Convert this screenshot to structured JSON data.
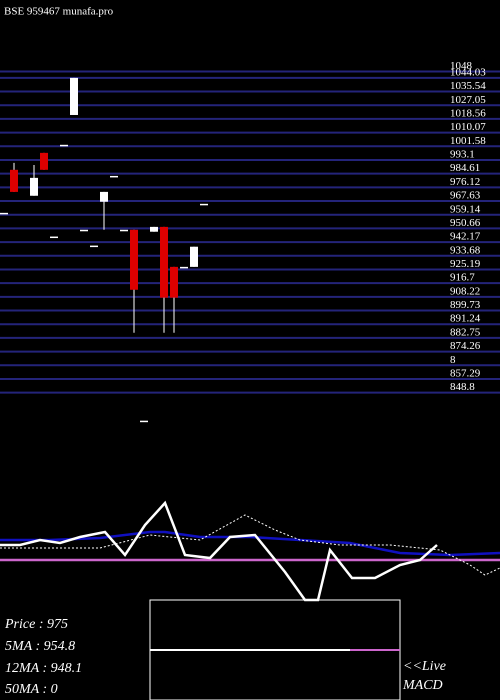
{
  "chart_data": {
    "type": "candlestick",
    "title": "BSE 959467 munafa.pro",
    "ylim": [
      818.8,
      1052
    ],
    "yticks": [
      1048,
      1044.03,
      1035.54,
      1027.05,
      1018.56,
      1010.07,
      1001.58,
      993.1,
      984.61,
      976.12,
      967.63,
      959.14,
      950.66,
      942.17,
      933.68,
      925.19,
      916.7,
      908.22,
      899.73,
      891.24,
      882.75,
      874.26,
      {
        "value": 865.77,
        "label": "8"
      },
      857.29,
      848.8
    ],
    "grid_color": "#24247a",
    "up_color": "#ffffff",
    "down_color": "#dd0000",
    "candles": [
      {
        "open": 960.3,
        "high": 960.3,
        "low": 960.3,
        "close": 960.3
      },
      {
        "open": 987,
        "high": 991.3,
        "low": 973.3,
        "close": 973.3
      },
      null,
      {
        "open": 970.9,
        "high": 990,
        "low": 970.9,
        "close": 982
      },
      {
        "open": 997.5,
        "high": 997.5,
        "low": 987,
        "close": 987
      },
      {
        "open": 945.6,
        "high": 945.6,
        "low": 945.6,
        "close": 945.6
      },
      {
        "open": 1002.5,
        "high": 1002.5,
        "low": 1002.5,
        "close": 1002.5
      },
      {
        "open": 1021,
        "high": 1044,
        "low": 1021,
        "close": 1044
      },
      {
        "open": 949.8,
        "high": 949.8,
        "low": 949.8,
        "close": 949.8
      },
      {
        "open": 940,
        "high": 940,
        "low": 940,
        "close": 940
      },
      {
        "open": 967.2,
        "high": 973.3,
        "low": 949.8,
        "close": 973.3
      },
      {
        "open": 983.2,
        "high": 983.2,
        "low": 983.2,
        "close": 983.2
      },
      {
        "open": 949.8,
        "high": 949.8,
        "low": 949.8,
        "close": 949.8
      },
      {
        "open": 949.8,
        "high": 949.8,
        "low": 885.9,
        "close": 912.6
      },
      {
        "open": 831.4,
        "high": 831.4,
        "low": 831.4,
        "close": 831.4
      },
      {
        "open": 948.6,
        "high": 951.6,
        "low": 948.6,
        "close": 951.6
      },
      {
        "open": 951.6,
        "high": 951.6,
        "low": 885.9,
        "close": 907.7
      },
      {
        "open": 926.8,
        "high": 926.8,
        "low": 885.9,
        "close": 907.7
      },
      {
        "open": 926.8,
        "high": 926.8,
        "low": 926.8,
        "close": 926.8
      },
      {
        "open": 926.8,
        "high": 939.3,
        "low": 926.8,
        "close": 939.3
      },
      {
        "open": 965.9,
        "high": 965.9,
        "low": 965.9,
        "close": 965.9
      }
    ],
    "indicator": {
      "xlim": [
        0,
        500
      ],
      "ylim": [
        0,
        100
      ],
      "series": [
        {
          "color": "#1010c0",
          "width": 2.5,
          "x": [
            0,
            50,
            100,
            150,
            165,
            200,
            250,
            300,
            350,
            375,
            400,
            450,
            500
          ],
          "values": [
            60,
            60,
            62,
            68,
            68,
            63,
            63,
            60,
            57,
            52,
            47,
            45,
            47
          ]
        },
        {
          "color": "#cc66cc",
          "width": 2.5,
          "x": [
            0,
            500
          ],
          "values": [
            40,
            40
          ]
        },
        {
          "color": "#ffffff",
          "width": 1,
          "dash": true,
          "x": [
            0,
            100,
            150,
            200,
            245,
            275,
            300,
            340,
            390,
            440,
            470,
            485,
            500
          ],
          "values": [
            52,
            52,
            65,
            60,
            85,
            70,
            60,
            55,
            55,
            50,
            35,
            25,
            32
          ]
        },
        {
          "color": "#ffffff",
          "width": 2.5,
          "x": [
            0,
            20,
            40,
            60,
            80,
            105,
            125,
            145,
            165,
            185,
            210,
            230,
            255,
            285,
            305,
            318,
            330,
            352,
            375,
            400,
            420,
            437
          ],
          "values": [
            55,
            55,
            60,
            57,
            63,
            68,
            45,
            75,
            97,
            45,
            42,
            63,
            65,
            28,
            0,
            0,
            50,
            22,
            22,
            35,
            40,
            55
          ]
        }
      ]
    },
    "stats": [
      "Price   : 975",
      "5MA : 954.8",
      "12MA : 948.1",
      "50MA : 0"
    ],
    "macd_label": [
      "<<Live",
      "MACD"
    ]
  }
}
